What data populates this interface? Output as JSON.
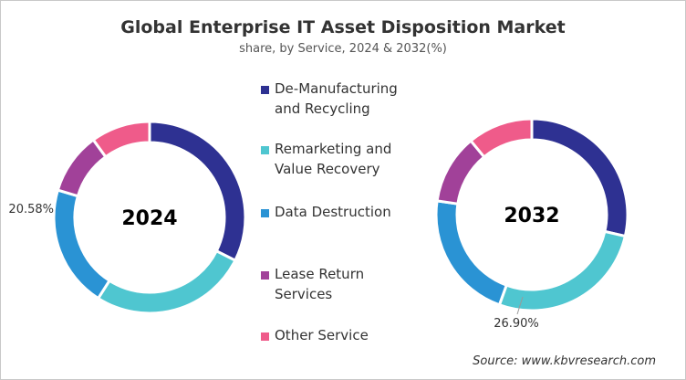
{
  "title": "Global Enterprise IT Asset Disposition Market",
  "subtitle": "share, by Service, 2024 & 2032(%)",
  "source": "Source: www.kbvresearch.com",
  "chart_data": [
    {
      "type": "pie",
      "donut": true,
      "center_label": "2024",
      "categories": [
        "De-Manufacturing and Recycling",
        "Remarketing and Value Recovery",
        "Data Destruction",
        "Lease Return Services",
        "Other Service"
      ],
      "values": [
        32.4,
        26.6,
        20.58,
        10.4,
        10.0
      ],
      "data_labels": [
        {
          "category": "Data Destruction",
          "text": "20.58%"
        }
      ]
    },
    {
      "type": "pie",
      "donut": true,
      "center_label": "2032",
      "categories": [
        "De-Manufacturing and Recycling",
        "Remarketing and Value Recovery",
        "Data Destruction",
        "Lease Return Services",
        "Other Service"
      ],
      "values": [
        28.6,
        26.9,
        21.8,
        11.7,
        11.0
      ],
      "data_labels": [
        {
          "category": "Remarketing and Value Recovery",
          "text": "26.90%"
        }
      ]
    }
  ],
  "legend": {
    "placement": "center",
    "items": [
      {
        "label": "De-Manufacturing and Recycling",
        "color": "#2e3192"
      },
      {
        "label": "Remarketing and Value Recovery",
        "color": "#4fc6d0"
      },
      {
        "label": "Data Destruction",
        "color": "#2a93d4"
      },
      {
        "label": "Lease Return Services",
        "color": "#a14199"
      },
      {
        "label": "Other Service",
        "color": "#ef5b8a"
      }
    ]
  }
}
